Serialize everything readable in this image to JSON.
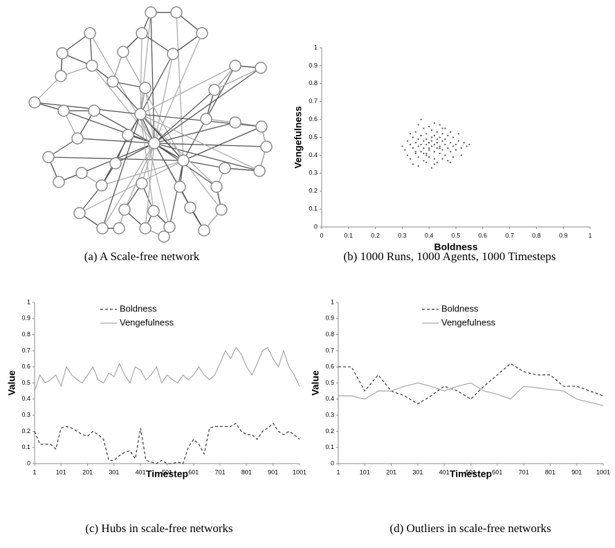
{
  "chart_data": [
    {
      "type": "network",
      "caption": "(a) A Scale-free network"
    },
    {
      "type": "scatter",
      "caption": "(b) 1000 Runs, 1000 Agents, 1000 Timesteps",
      "xlabel": "Boldness",
      "ylabel": "Vengefulness",
      "xlim": [
        0,
        1
      ],
      "ylim": [
        0,
        1
      ],
      "xticks": [
        0,
        0.1,
        0.2,
        0.3,
        0.4,
        0.5,
        0.6,
        0.7,
        0.8,
        0.9,
        1
      ],
      "yticks": [
        0,
        0.1,
        0.2,
        0.3,
        0.4,
        0.5,
        0.6,
        0.7,
        0.8,
        0.9,
        1
      ],
      "series": [
        {
          "color": "#555555",
          "x": [
            0.3,
            0.31,
            0.32,
            0.32,
            0.33,
            0.33,
            0.34,
            0.34,
            0.34,
            0.35,
            0.35,
            0.35,
            0.36,
            0.36,
            0.36,
            0.36,
            0.37,
            0.37,
            0.37,
            0.37,
            0.38,
            0.38,
            0.38,
            0.38,
            0.38,
            0.39,
            0.39,
            0.39,
            0.39,
            0.39,
            0.4,
            0.4,
            0.4,
            0.4,
            0.4,
            0.41,
            0.41,
            0.41,
            0.41,
            0.41,
            0.42,
            0.42,
            0.42,
            0.42,
            0.42,
            0.43,
            0.43,
            0.43,
            0.43,
            0.43,
            0.44,
            0.44,
            0.44,
            0.44,
            0.45,
            0.45,
            0.45,
            0.45,
            0.46,
            0.46,
            0.46,
            0.46,
            0.47,
            0.47,
            0.47,
            0.48,
            0.48,
            0.48,
            0.49,
            0.49,
            0.49,
            0.5,
            0.5,
            0.51,
            0.51,
            0.52,
            0.52,
            0.53,
            0.54,
            0.55,
            0.33,
            0.36,
            0.39,
            0.42,
            0.45,
            0.48,
            0.35,
            0.44,
            0.4,
            0.37
          ],
          "values": [
            0.45,
            0.43,
            0.48,
            0.4,
            0.46,
            0.38,
            0.5,
            0.44,
            0.35,
            0.47,
            0.41,
            0.53,
            0.45,
            0.39,
            0.49,
            0.34,
            0.6,
            0.46,
            0.42,
            0.51,
            0.44,
            0.37,
            0.48,
            0.55,
            0.41,
            0.46,
            0.52,
            0.4,
            0.36,
            0.49,
            0.44,
            0.47,
            0.56,
            0.39,
            0.43,
            0.5,
            0.45,
            0.33,
            0.48,
            0.54,
            0.42,
            0.46,
            0.58,
            0.38,
            0.51,
            0.44,
            0.49,
            0.36,
            0.53,
            0.47,
            0.41,
            0.45,
            0.57,
            0.5,
            0.43,
            0.48,
            0.38,
            0.52,
            0.46,
            0.4,
            0.55,
            0.49,
            0.44,
            0.51,
            0.37,
            0.47,
            0.42,
            0.53,
            0.45,
            0.5,
            0.39,
            0.46,
            0.43,
            0.48,
            0.52,
            0.44,
            0.4,
            0.47,
            0.45,
            0.46,
            0.52,
            0.57,
            0.41,
            0.35,
            0.55,
            0.36,
            0.42,
            0.44,
            0.47,
            0.51
          ]
        }
      ]
    },
    {
      "type": "line",
      "caption": "(c) Hubs in scale-free networks",
      "xlabel": "Timestep",
      "ylabel": "Value",
      "xlim": [
        1,
        1001
      ],
      "ylim": [
        0,
        1
      ],
      "legend": "top-center",
      "xticks": [
        1,
        101,
        201,
        301,
        401,
        501,
        601,
        701,
        801,
        901,
        1001
      ],
      "yticks": [
        0,
        0.1,
        0.2,
        0.3,
        0.4,
        0.5,
        0.6,
        0.7,
        0.8,
        0.9,
        1
      ],
      "x": [
        1,
        21,
        41,
        61,
        81,
        101,
        121,
        141,
        161,
        181,
        201,
        221,
        241,
        261,
        281,
        301,
        321,
        341,
        361,
        381,
        401,
        421,
        441,
        461,
        481,
        501,
        521,
        541,
        561,
        581,
        601,
        621,
        641,
        661,
        681,
        701,
        721,
        741,
        761,
        781,
        801,
        821,
        841,
        861,
        881,
        901,
        921,
        941,
        961,
        981,
        1001
      ],
      "series": [
        {
          "name": "Boldness",
          "color": "#333333",
          "line_style": "dashed",
          "values": [
            0.2,
            0.12,
            0.12,
            0.12,
            0.09,
            0.22,
            0.23,
            0.22,
            0.2,
            0.18,
            0.17,
            0.2,
            0.18,
            0.15,
            0.02,
            0.02,
            0.05,
            0.07,
            0.08,
            0.03,
            0.22,
            0.02,
            0.01,
            0,
            0.02,
            0,
            0,
            0.01,
            0,
            0.1,
            0.15,
            0.12,
            0.06,
            0.22,
            0.23,
            0.23,
            0.23,
            0.23,
            0.25,
            0.2,
            0.18,
            0.18,
            0.15,
            0.2,
            0.22,
            0.25,
            0.2,
            0.18,
            0.2,
            0.18,
            0.15
          ]
        },
        {
          "name": "Vengefulness",
          "color": "#a6a6a6",
          "line_style": "solid",
          "values": [
            0.45,
            0.55,
            0.5,
            0.52,
            0.55,
            0.48,
            0.6,
            0.55,
            0.52,
            0.5,
            0.55,
            0.6,
            0.52,
            0.5,
            0.56,
            0.54,
            0.62,
            0.55,
            0.5,
            0.6,
            0.58,
            0.52,
            0.55,
            0.6,
            0.5,
            0.55,
            0.52,
            0.5,
            0.55,
            0.52,
            0.55,
            0.6,
            0.55,
            0.52,
            0.55,
            0.62,
            0.7,
            0.65,
            0.72,
            0.68,
            0.6,
            0.55,
            0.62,
            0.7,
            0.72,
            0.65,
            0.6,
            0.7,
            0.6,
            0.55,
            0.48
          ]
        }
      ]
    },
    {
      "type": "line",
      "caption": "(d) Outliers in scale-free networks",
      "xlabel": "Timestep",
      "ylabel": "Value",
      "xlim": [
        1,
        1001
      ],
      "ylim": [
        0,
        1
      ],
      "legend": "top-center",
      "xticks": [
        1,
        101,
        201,
        301,
        401,
        501,
        601,
        701,
        801,
        901,
        1001
      ],
      "yticks": [
        0,
        0.1,
        0.2,
        0.3,
        0.4,
        0.5,
        0.6,
        0.7,
        0.8,
        0.9,
        1
      ],
      "x": [
        1,
        51,
        101,
        151,
        201,
        251,
        301,
        351,
        401,
        451,
        501,
        551,
        601,
        651,
        701,
        751,
        801,
        851,
        901,
        951,
        1001
      ],
      "series": [
        {
          "name": "Boldness",
          "color": "#333333",
          "line_style": "dashed",
          "values": [
            0.6,
            0.6,
            0.45,
            0.55,
            0.45,
            0.42,
            0.37,
            0.42,
            0.48,
            0.45,
            0.4,
            0.48,
            0.55,
            0.62,
            0.57,
            0.55,
            0.55,
            0.48,
            0.48,
            0.45,
            0.42
          ]
        },
        {
          "name": "Vengefulness",
          "color": "#a6a6a6",
          "line_style": "solid",
          "values": [
            0.42,
            0.42,
            0.4,
            0.45,
            0.45,
            0.48,
            0.5,
            0.48,
            0.45,
            0.48,
            0.5,
            0.45,
            0.43,
            0.4,
            0.48,
            0.47,
            0.46,
            0.45,
            0.4,
            0.38,
            0.36
          ]
        }
      ]
    }
  ]
}
